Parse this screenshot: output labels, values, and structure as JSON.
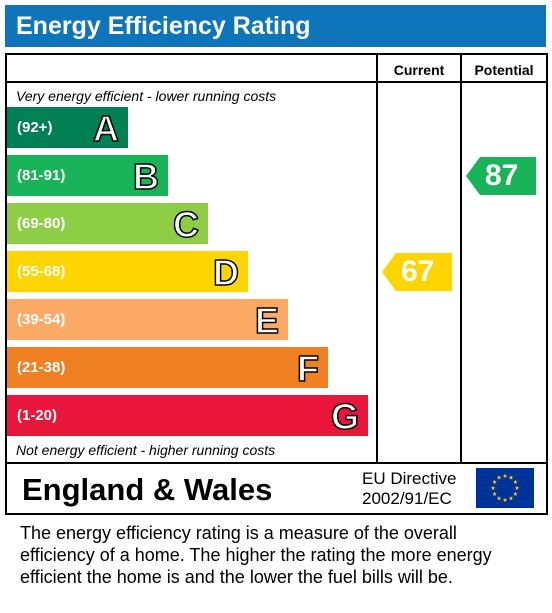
{
  "title": "Energy Efficiency Rating",
  "columns": {
    "current": "Current",
    "potential": "Potential"
  },
  "top_note": "Very energy efficient - lower running costs",
  "bottom_note": "Not energy efficient - higher running costs",
  "footer": {
    "region": "England & Wales",
    "directive_line1": "EU Directive",
    "directive_line2": "2002/91/EC"
  },
  "description": [
    "The energy efficiency rating is a measure of the overall",
    "efficiency of a home.  The higher the rating the more energy",
    "efficient the home is and the lower the fuel bills will be."
  ],
  "chart_data": {
    "type": "bar",
    "title": "Energy Efficiency Rating",
    "categories": [
      "A",
      "B",
      "C",
      "D",
      "E",
      "F",
      "G"
    ],
    "ranges": [
      "(92+)",
      "(81-91)",
      "(69-80)",
      "(55-68)",
      "(39-54)",
      "(21-38)",
      "(1-20)"
    ],
    "range_bounds": [
      [
        92,
        100
      ],
      [
        81,
        91
      ],
      [
        69,
        80
      ],
      [
        55,
        68
      ],
      [
        39,
        54
      ],
      [
        21,
        38
      ],
      [
        1,
        20
      ]
    ],
    "colors": [
      "#008054",
      "#19b459",
      "#8dce46",
      "#ffd500",
      "#fcaa65",
      "#ef8023",
      "#e9153b"
    ],
    "ratings": [
      {
        "name": "Current",
        "value": 67,
        "band": "D",
        "color": "#ffd500"
      },
      {
        "name": "Potential",
        "value": 87,
        "band": "B",
        "color": "#19b459"
      }
    ]
  },
  "eu_flag": {
    "icon": "eu-flag-icon",
    "background": "#003399",
    "star_color": "#ffcc00"
  }
}
